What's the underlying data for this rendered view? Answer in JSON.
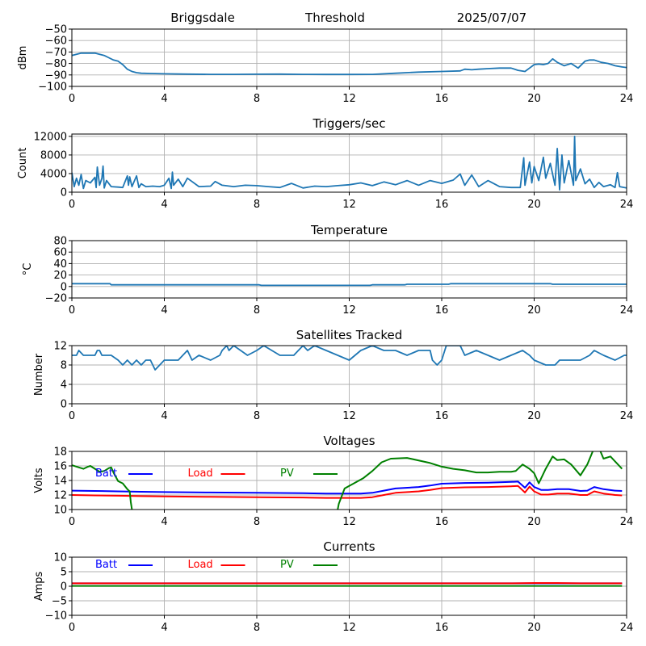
{
  "header": {
    "station": "Briggsdale",
    "mode": "Threshold",
    "date": "2025/07/07"
  },
  "chart_data": [
    {
      "id": "threshold",
      "type": "line",
      "title": "",
      "ylabel": "dBm",
      "xlim": [
        0,
        24
      ],
      "ylim": [
        -100,
        -50
      ],
      "yticks": [
        -100,
        -90,
        -80,
        -70,
        -60,
        -50
      ],
      "ytick_labels": [
        "−100",
        "−90",
        "−80",
        "−70",
        "−60",
        "−50"
      ],
      "xticks": [
        0,
        4,
        8,
        12,
        16,
        20,
        24
      ],
      "grid": true,
      "series": [
        {
          "name": "threshold",
          "color": "#1f77b4",
          "x": [
            0,
            0.2,
            0.4,
            0.6,
            0.8,
            1.0,
            1.2,
            1.4,
            1.6,
            1.8,
            2.0,
            2.2,
            2.4,
            2.6,
            2.8,
            3.0,
            3.4,
            4,
            5,
            6,
            7,
            8,
            9,
            10,
            11,
            12,
            13,
            14,
            15,
            16,
            16.8,
            17.0,
            17.3,
            17.6,
            18.0,
            18.5,
            19.0,
            19.3,
            19.6,
            19.8,
            20.0,
            20.2,
            20.4,
            20.6,
            20.8,
            21.0,
            21.3,
            21.6,
            21.9,
            22.2,
            22.4,
            22.6,
            22.9,
            23.2,
            23.5,
            23.8,
            24
          ],
          "y": [
            -73,
            -72,
            -71,
            -71,
            -71,
            -71,
            -72,
            -73,
            -75,
            -77,
            -78,
            -81,
            -85,
            -87,
            -88,
            -88.5,
            -88.7,
            -89,
            -89.3,
            -89.5,
            -89.5,
            -89.4,
            -89.3,
            -89.5,
            -89.6,
            -89.6,
            -89.5,
            -88.5,
            -87.5,
            -87,
            -86.5,
            -85,
            -85.5,
            -85,
            -84.5,
            -84,
            -84,
            -86,
            -87,
            -84,
            -81,
            -80.5,
            -81,
            -80,
            -76,
            -79,
            -82,
            -80,
            -84,
            -78,
            -77,
            -77,
            -79,
            -80,
            -82,
            -83,
            -83.5
          ]
        }
      ]
    },
    {
      "id": "triggers",
      "type": "line",
      "title": "Triggers/sec",
      "ylabel": "Count",
      "xlim": [
        0,
        24
      ],
      "ylim": [
        0,
        12500
      ],
      "yticks": [
        0,
        4000,
        8000,
        12000
      ],
      "ytick_labels": [
        "0",
        "4000",
        "8000",
        "12000"
      ],
      "xticks": [
        0,
        4,
        8,
        12,
        16,
        20,
        24
      ],
      "grid": true,
      "series": [
        {
          "name": "triggers",
          "color": "#1f77b4",
          "x": [
            0,
            0.1,
            0.2,
            0.3,
            0.4,
            0.5,
            0.6,
            0.8,
            1.0,
            1.05,
            1.1,
            1.2,
            1.3,
            1.35,
            1.4,
            1.5,
            1.7,
            2.0,
            2.2,
            2.4,
            2.45,
            2.5,
            2.6,
            2.8,
            2.9,
            3.0,
            3.2,
            3.5,
            3.8,
            4.0,
            4.2,
            4.3,
            4.35,
            4.4,
            4.6,
            4.8,
            5.0,
            5.5,
            6.0,
            6.2,
            6.5,
            7.0,
            7.5,
            8.0,
            8.5,
            9.0,
            9.5,
            10.0,
            10.5,
            11.0,
            11.5,
            12.0,
            12.5,
            13.0,
            13.5,
            14.0,
            14.5,
            15.0,
            15.5,
            16.0,
            16.5,
            16.8,
            17.0,
            17.3,
            17.6,
            18.0,
            18.5,
            19.0,
            19.4,
            19.55,
            19.6,
            19.8,
            19.9,
            20.0,
            20.2,
            20.4,
            20.5,
            20.7,
            20.9,
            21.0,
            21.1,
            21.2,
            21.3,
            21.5,
            21.7,
            21.75,
            21.8,
            22.0,
            22.2,
            22.4,
            22.6,
            22.8,
            23.0,
            23.3,
            23.5,
            23.6,
            23.7,
            24
          ],
          "y": [
            4200,
            1200,
            3000,
            1500,
            3800,
            800,
            2500,
            2000,
            3200,
            1000,
            5400,
            1500,
            3000,
            5600,
            900,
            2500,
            1200,
            1100,
            1000,
            3500,
            1500,
            3300,
            1200,
            3500,
            1000,
            1800,
            1200,
            1300,
            1200,
            1500,
            3000,
            800,
            4300,
            1500,
            2800,
            1200,
            3000,
            1200,
            1300,
            2300,
            1500,
            1200,
            1500,
            1400,
            1200,
            1000,
            1900,
            900,
            1300,
            1200,
            1400,
            1600,
            2000,
            1400,
            2200,
            1600,
            2500,
            1500,
            2500,
            1900,
            2600,
            3900,
            1500,
            3700,
            1200,
            2500,
            1200,
            1000,
            1000,
            7400,
            1500,
            6500,
            2000,
            5500,
            2500,
            7500,
            3000,
            6200,
            1500,
            9400,
            500,
            8000,
            2000,
            6800,
            1500,
            12000,
            2500,
            5000,
            1800,
            2800,
            1000,
            2100,
            1200,
            1600,
            1000,
            4200,
            1200,
            900
          ]
        }
      ]
    },
    {
      "id": "temperature",
      "type": "line",
      "title": "Temperature",
      "ylabel": "°C",
      "xlim": [
        0,
        24
      ],
      "ylim": [
        -20,
        80
      ],
      "yticks": [
        -20,
        0,
        20,
        40,
        60,
        80
      ],
      "ytick_labels": [
        "−20",
        "0",
        "20",
        "40",
        "60",
        "80"
      ],
      "xticks": [
        0,
        4,
        8,
        12,
        16,
        20,
        24
      ],
      "grid": true,
      "series": [
        {
          "name": "temperature",
          "color": "#1f77b4",
          "x": [
            0,
            1.65,
            1.7,
            8.1,
            8.2,
            8.4,
            12.9,
            13.0,
            14.4,
            14.5,
            16.3,
            16.4,
            20.7,
            20.8,
            24
          ],
          "y": [
            5,
            5,
            3,
            3,
            2,
            2,
            2,
            3,
            3,
            4,
            4,
            5,
            5,
            4,
            4
          ]
        }
      ]
    },
    {
      "id": "satellites",
      "type": "line",
      "title": "Satellites Tracked",
      "ylabel": "Number",
      "xlim": [
        0,
        24
      ],
      "ylim": [
        0,
        12
      ],
      "yticks": [
        0,
        4,
        8,
        12
      ],
      "ytick_labels": [
        "0",
        "4",
        "8",
        "12"
      ],
      "xticks": [
        0,
        4,
        8,
        12,
        16,
        20,
        24
      ],
      "grid": true,
      "series": [
        {
          "name": "satellites",
          "color": "#1f77b4",
          "x": [
            0,
            0.2,
            0.3,
            0.5,
            1.0,
            1.1,
            1.2,
            1.3,
            1.5,
            1.7,
            2.0,
            2.2,
            2.4,
            2.6,
            2.8,
            3.0,
            3.2,
            3.4,
            3.6,
            3.8,
            4.0,
            4.2,
            4.6,
            4.8,
            5.0,
            5.2,
            5.5,
            6.0,
            6.4,
            6.5,
            6.7,
            6.8,
            7.0,
            7.3,
            7.6,
            8.0,
            8.3,
            9.0,
            9.6,
            9.8,
            10.0,
            10.2,
            10.5,
            11.0,
            11.5,
            12.0,
            12.5,
            13.0,
            13.5,
            14.0,
            14.5,
            15.0,
            15.5,
            15.6,
            15.8,
            16.0,
            16.2,
            16.8,
            17.0,
            17.5,
            18.0,
            18.5,
            19.0,
            19.5,
            19.8,
            20.0,
            20.5,
            20.9,
            21.1,
            21.5,
            22.0,
            22.4,
            22.6,
            23.0,
            23.5,
            23.9,
            24
          ],
          "y": [
            10,
            10,
            11,
            10,
            10,
            11,
            11,
            10,
            10,
            10,
            9,
            8,
            9,
            8,
            9,
            8,
            9,
            9,
            7,
            8,
            9,
            9,
            9,
            10,
            11,
            9,
            10,
            9,
            10,
            11,
            12,
            11,
            12,
            11,
            10,
            11,
            12,
            10,
            10,
            11,
            12,
            11,
            12,
            11,
            10,
            9,
            11,
            12,
            11,
            11,
            10,
            11,
            11,
            9,
            8,
            9,
            12,
            12,
            10,
            11,
            10,
            9,
            10,
            11,
            10,
            9,
            8,
            8,
            9,
            9,
            9,
            10,
            11,
            10,
            9,
            10,
            10
          ]
        }
      ]
    },
    {
      "id": "voltages",
      "type": "line",
      "title": "Voltages",
      "ylabel": "Volts",
      "xlim": [
        0,
        24
      ],
      "ylim": [
        10,
        18
      ],
      "yticks": [
        10,
        12,
        14,
        16,
        18
      ],
      "ytick_labels": [
        "10",
        "12",
        "14",
        "16",
        "18"
      ],
      "xticks": [
        0,
        4,
        8,
        12,
        16,
        20,
        24
      ],
      "grid": true,
      "legend": {
        "placement": "top-left",
        "orientation": "horizontal"
      },
      "series": [
        {
          "name": "Batt",
          "color": "#0000ff",
          "x": [
            0,
            1,
            2,
            3,
            4,
            6,
            8,
            10,
            11,
            12,
            12.5,
            13,
            13.5,
            14,
            15,
            15.5,
            16,
            17,
            18,
            19,
            19.3,
            19.6,
            19.8,
            20.0,
            20.3,
            20.6,
            21,
            21.5,
            22,
            22.3,
            22.6,
            23,
            23.5,
            23.8
          ],
          "y": [
            12.6,
            12.55,
            12.5,
            12.45,
            12.4,
            12.35,
            12.3,
            12.25,
            12.2,
            12.2,
            12.2,
            12.3,
            12.6,
            12.9,
            13.1,
            13.3,
            13.55,
            13.65,
            13.7,
            13.8,
            13.85,
            13.0,
            13.75,
            13.1,
            12.7,
            12.7,
            12.8,
            12.8,
            12.55,
            12.6,
            13.1,
            12.8,
            12.6,
            12.55
          ]
        },
        {
          "name": "Load",
          "color": "#ff0000",
          "x": [
            0,
            1,
            2,
            3,
            4,
            6,
            8,
            10,
            11,
            12,
            12.5,
            13,
            13.5,
            14,
            15,
            15.5,
            16,
            17,
            18,
            19,
            19.3,
            19.6,
            19.8,
            20.0,
            20.3,
            20.6,
            21,
            21.5,
            22,
            22.3,
            22.6,
            23,
            23.5,
            23.8
          ],
          "y": [
            12.0,
            11.95,
            11.9,
            11.85,
            11.8,
            11.75,
            11.7,
            11.65,
            11.6,
            11.6,
            11.6,
            11.7,
            12.0,
            12.3,
            12.5,
            12.7,
            12.95,
            13.05,
            13.1,
            13.2,
            13.25,
            12.35,
            13.15,
            12.5,
            12.05,
            12.05,
            12.2,
            12.2,
            12.0,
            12.0,
            12.5,
            12.2,
            12.0,
            11.95
          ]
        },
        {
          "name": "PV",
          "color": "#008000",
          "x": [
            0,
            0.3,
            0.5,
            0.7,
            0.8,
            1.0,
            1.2,
            1.4,
            1.6,
            1.7,
            1.8,
            2.0,
            2.2,
            2.4,
            2.5,
            2.55,
            2.6,
            null,
            11.5,
            11.55,
            11.8,
            12.2,
            12.6,
            13.0,
            13.4,
            13.8,
            14.5,
            15.5,
            16.0,
            16.5,
            17.0,
            17.5,
            18.0,
            18.5,
            19.0,
            19.2,
            19.5,
            19.8,
            20.0,
            20.2,
            20.5,
            20.8,
            21.0,
            21.3,
            21.6,
            22.0,
            22.3,
            22.6,
            22.8,
            23.0,
            23.3,
            23.8
          ],
          "y": [
            16.1,
            15.8,
            15.6,
            15.9,
            16.0,
            15.6,
            15.2,
            15.3,
            15.7,
            15.8,
            15.1,
            13.9,
            13.6,
            12.8,
            12.5,
            11.0,
            10.0,
            null,
            10.0,
            10.8,
            12.9,
            13.6,
            14.3,
            15.3,
            16.5,
            17.0,
            17.1,
            16.4,
            15.9,
            15.6,
            15.4,
            15.1,
            15.1,
            15.2,
            15.2,
            15.3,
            16.2,
            15.6,
            15.0,
            13.6,
            15.6,
            17.3,
            16.8,
            16.9,
            16.2,
            14.7,
            16.2,
            18.5,
            18.5,
            17.0,
            17.3,
            15.6
          ]
        }
      ]
    },
    {
      "id": "currents",
      "type": "line",
      "title": "Currents",
      "ylabel": "Amps",
      "xlim": [
        0,
        24
      ],
      "ylim": [
        -10,
        10
      ],
      "yticks": [
        -10,
        -5,
        0,
        5,
        10
      ],
      "ytick_labels": [
        "−10",
        "−5",
        "0",
        "5",
        "10"
      ],
      "xticks": [
        0,
        4,
        8,
        12,
        16,
        20,
        24
      ],
      "grid": true,
      "legend": {
        "placement": "top-left",
        "orientation": "horizontal"
      },
      "series": [
        {
          "name": "Batt",
          "color": "#0000ff",
          "x": [
            0,
            23.8
          ],
          "y": [
            1.0,
            1.0
          ]
        },
        {
          "name": "Load",
          "color": "#ff0000",
          "x": [
            0,
            4,
            8,
            12,
            16,
            19,
            20,
            21,
            22,
            23,
            23.8
          ],
          "y": [
            1.0,
            1.0,
            1.0,
            1.0,
            1.0,
            1.0,
            1.1,
            1.1,
            1.0,
            1.0,
            1.0
          ]
        },
        {
          "name": "PV",
          "color": "#008000",
          "x": [
            0,
            23.8
          ],
          "y": [
            0.1,
            0.1
          ]
        }
      ]
    }
  ]
}
